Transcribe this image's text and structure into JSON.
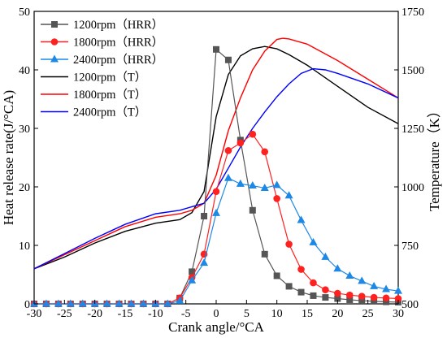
{
  "chart_data": {
    "type": "line",
    "title": "",
    "xlabel": "Crank angle/°CA",
    "ylabel_left": "Heat release rate(J/°CA)",
    "ylabel_right": "Temperature（K）",
    "xlim": [
      -30,
      30
    ],
    "ylim_left": [
      0,
      50
    ],
    "ylim_right": [
      500,
      1750
    ],
    "x_ticks": [
      -30,
      -25,
      -20,
      -15,
      -10,
      -5,
      0,
      5,
      10,
      15,
      20,
      25,
      30
    ],
    "y_left_ticks": [
      0,
      10,
      20,
      30,
      40,
      50
    ],
    "y_right_ticks": [
      500,
      750,
      1000,
      1250,
      1500,
      1750
    ],
    "legend_position": "top-left",
    "grid": false,
    "series": [
      {
        "name": "1200rpm（HRR）",
        "axis": "left",
        "color": "#555555",
        "marker": "square",
        "x": [
          -30,
          -28,
          -26,
          -24,
          -22,
          -20,
          -18,
          -16,
          -14,
          -12,
          -10,
          -8,
          -6,
          -4,
          -2,
          0,
          2,
          4,
          6,
          8,
          10,
          12,
          14,
          16,
          18,
          20,
          22,
          24,
          26,
          28,
          30
        ],
        "y": [
          0,
          0,
          0,
          0,
          0,
          0,
          0,
          0,
          0,
          0,
          0,
          0,
          1,
          5.5,
          15,
          43.5,
          41.7,
          28,
          16,
          8.5,
          4.8,
          3,
          2,
          1.4,
          1.1,
          0.9,
          0.7,
          0.55,
          0.45,
          0.35,
          0.3
        ]
      },
      {
        "name": "1800rpm（HRR）",
        "axis": "left",
        "color": "#ff2020",
        "marker": "circle",
        "x": [
          -30,
          -28,
          -26,
          -24,
          -22,
          -20,
          -18,
          -16,
          -14,
          -12,
          -10,
          -8,
          -6,
          -4,
          -2,
          0,
          2,
          4,
          6,
          8,
          10,
          12,
          14,
          16,
          18,
          20,
          22,
          24,
          26,
          28,
          30
        ],
        "y": [
          0,
          0,
          0,
          0,
          0,
          0,
          0,
          0,
          0,
          0,
          0,
          0,
          1,
          4.5,
          8.5,
          19.2,
          26.2,
          27.5,
          29,
          26,
          18,
          10.2,
          5.9,
          3.6,
          2.4,
          1.8,
          1.5,
          1.3,
          1.1,
          1,
          0.9
        ]
      },
      {
        "name": "2400rpm（HRR）",
        "axis": "left",
        "color": "#1e88e5",
        "marker": "triangle",
        "x": [
          -30,
          -28,
          -26,
          -24,
          -22,
          -20,
          -18,
          -16,
          -14,
          -12,
          -10,
          -8,
          -6,
          -4,
          -2,
          0,
          2,
          4,
          6,
          8,
          10,
          12,
          14,
          16,
          18,
          20,
          22,
          24,
          26,
          28,
          30
        ],
        "y": [
          0,
          0,
          0,
          0,
          0,
          0,
          0,
          0,
          0,
          0,
          0,
          0,
          0.5,
          4,
          7,
          15.5,
          21.5,
          20.5,
          20.2,
          19.8,
          20.3,
          18.5,
          14.3,
          10.5,
          8,
          6,
          4.8,
          3.9,
          3,
          2.5,
          2.2
        ]
      },
      {
        "name": "1200rpm（T）",
        "axis": "right",
        "color": "#000000",
        "marker": "none",
        "x": [
          -30,
          -25,
          -20,
          -15,
          -10,
          -6,
          -4,
          -2,
          0,
          2,
          4,
          6,
          8,
          10,
          12,
          15,
          20,
          25,
          30
        ],
        "y": [
          650,
          700,
          760,
          810,
          845,
          860,
          890,
          980,
          1300,
          1480,
          1560,
          1590,
          1600,
          1590,
          1565,
          1520,
          1430,
          1340,
          1270
        ]
      },
      {
        "name": "1800rpm（T）",
        "axis": "right",
        "color": "#ff0000",
        "marker": "none",
        "x": [
          -30,
          -25,
          -20,
          -15,
          -10,
          -6,
          -4,
          -2,
          0,
          2,
          4,
          6,
          8,
          10,
          11,
          12,
          15,
          20,
          25,
          30
        ],
        "y": [
          650,
          710,
          770,
          830,
          870,
          885,
          900,
          930,
          1050,
          1240,
          1380,
          1500,
          1580,
          1630,
          1635,
          1632,
          1610,
          1540,
          1460,
          1380
        ]
      },
      {
        "name": "2400rpm（T）",
        "axis": "right",
        "color": "#0000ff",
        "marker": "none",
        "x": [
          -30,
          -25,
          -20,
          -15,
          -10,
          -6,
          -4,
          -2,
          0,
          2,
          4,
          6,
          8,
          10,
          12,
          14,
          16,
          18,
          20,
          25,
          30
        ],
        "y": [
          650,
          715,
          780,
          840,
          885,
          900,
          915,
          930,
          990,
          1080,
          1170,
          1250,
          1320,
          1385,
          1440,
          1485,
          1505,
          1500,
          1485,
          1440,
          1380
        ]
      }
    ]
  }
}
